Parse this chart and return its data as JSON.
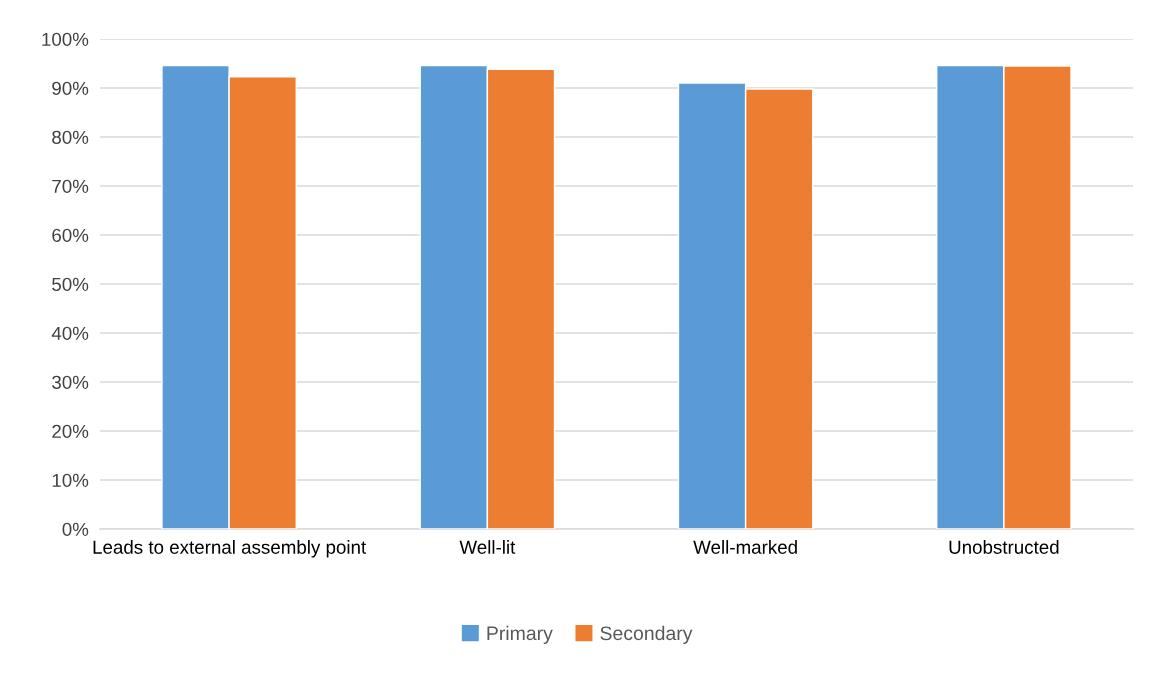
{
  "chart_data": {
    "type": "bar",
    "categories": [
      "Leads to external assembly point",
      "Well-lit",
      "Well-marked",
      "Unobstructed"
    ],
    "series": [
      {
        "name": "Primary",
        "color": "#5b9bd5",
        "values": [
          94.6,
          94.6,
          91.0,
          94.6
        ]
      },
      {
        "name": "Secondary",
        "color": "#ed7d31",
        "values": [
          92.3,
          93.8,
          89.8,
          94.5
        ]
      }
    ],
    "ylim": [
      0,
      100
    ],
    "yticks": [
      {
        "value": 0,
        "label": "0%"
      },
      {
        "value": 10,
        "label": "10%"
      },
      {
        "value": 20,
        "label": "20%"
      },
      {
        "value": 30,
        "label": "30%"
      },
      {
        "value": 40,
        "label": "40%"
      },
      {
        "value": 50,
        "label": "50%"
      },
      {
        "value": 60,
        "label": "60%"
      },
      {
        "value": 70,
        "label": "70%"
      },
      {
        "value": 80,
        "label": "80%"
      },
      {
        "value": 90,
        "label": "90%"
      },
      {
        "value": 100,
        "label": "100%"
      }
    ],
    "grid": "y",
    "legend": "bottom"
  }
}
